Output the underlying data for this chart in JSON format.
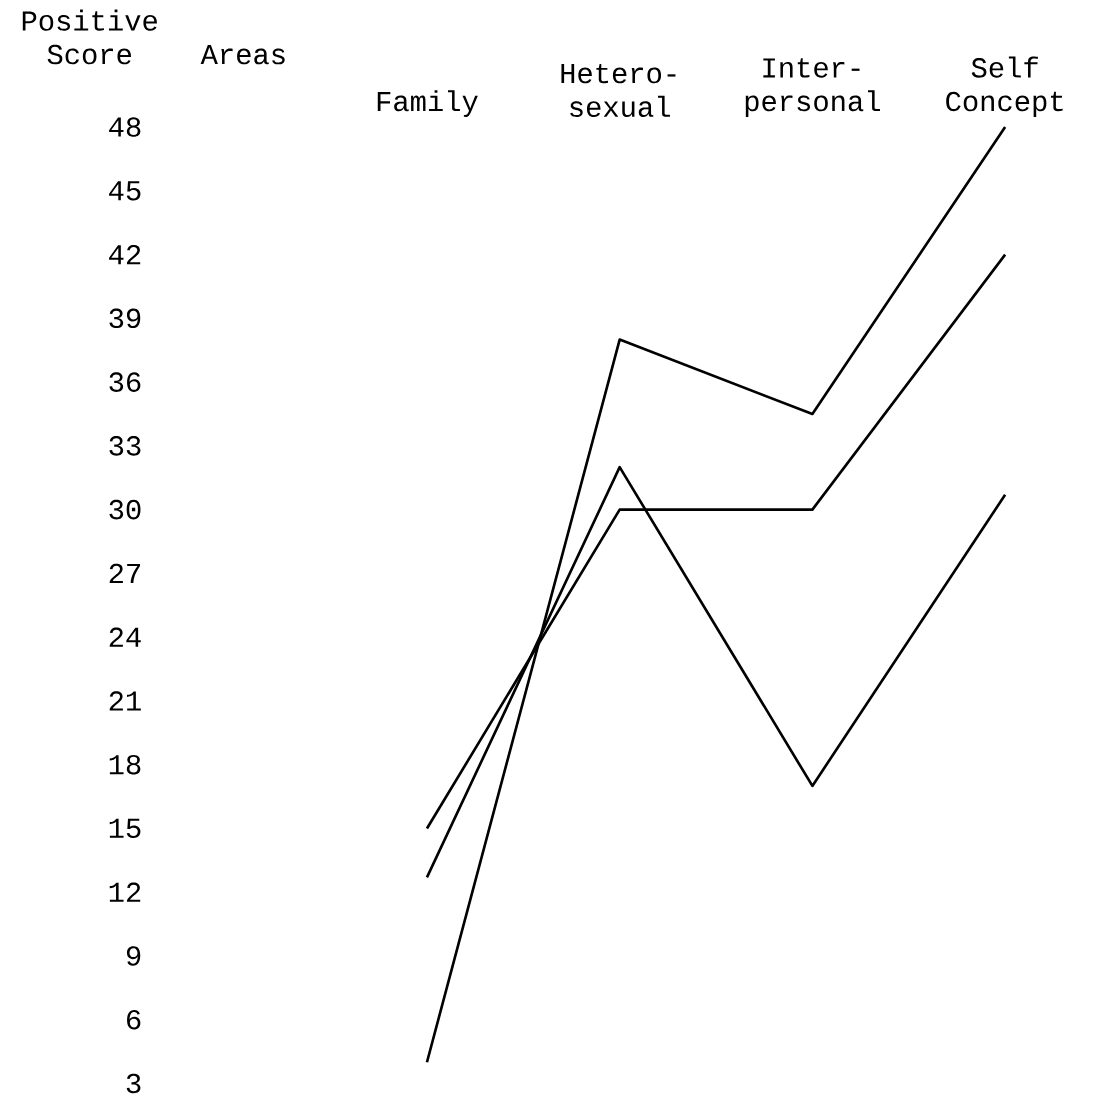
{
  "chart_data": {
    "type": "line",
    "xlabel": "Areas",
    "ylabel": "Positive Score",
    "categories": [
      "Family",
      "Hetero-sexual",
      "Inter-personal",
      "Self Concept"
    ],
    "series": [
      {
        "color": "#000000",
        "values": [
          4,
          38,
          34.5,
          48
        ]
      },
      {
        "color": "#000000",
        "values": [
          12.7,
          32,
          17,
          30.7
        ]
      },
      {
        "color": "#000000",
        "values": [
          15,
          30,
          30,
          42
        ]
      }
    ],
    "ylim": [
      3,
      48
    ],
    "yticks": [
      3,
      6,
      9,
      12,
      15,
      18,
      21,
      24,
      27,
      30,
      33,
      36,
      39,
      42,
      45,
      48
    ]
  }
}
